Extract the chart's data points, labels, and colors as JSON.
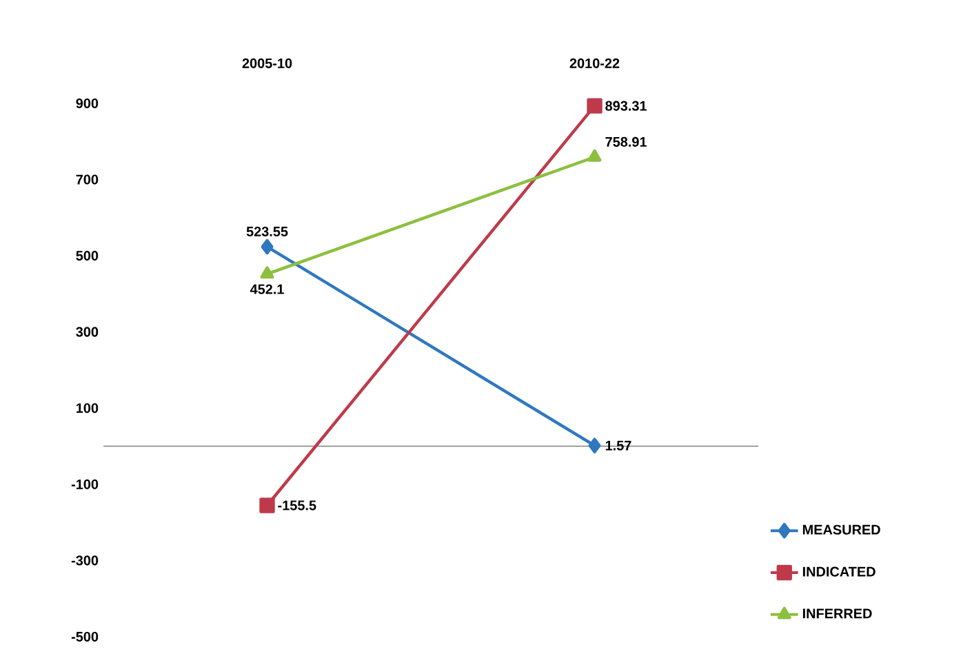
{
  "chart_data": {
    "type": "line",
    "categories": [
      "2005-10",
      "2010-22"
    ],
    "series": [
      {
        "name": "MEASURED",
        "color": "#2f78c0",
        "marker": "diamond",
        "values": [
          523.55,
          1.57
        ]
      },
      {
        "name": "INDICATED",
        "color": "#be3a4a",
        "marker": "square",
        "values": [
          -155.5,
          893.31
        ]
      },
      {
        "name": "INFERRED",
        "color": "#8cbf3f",
        "marker": "triangle",
        "values": [
          452.1,
          758.91
        ]
      }
    ],
    "ylim": [
      -500,
      900
    ],
    "yticks": [
      -500,
      -300,
      -100,
      100,
      300,
      500,
      700,
      900
    ],
    "data_labels": true,
    "legend": "bottom right",
    "line_style": "solid"
  }
}
